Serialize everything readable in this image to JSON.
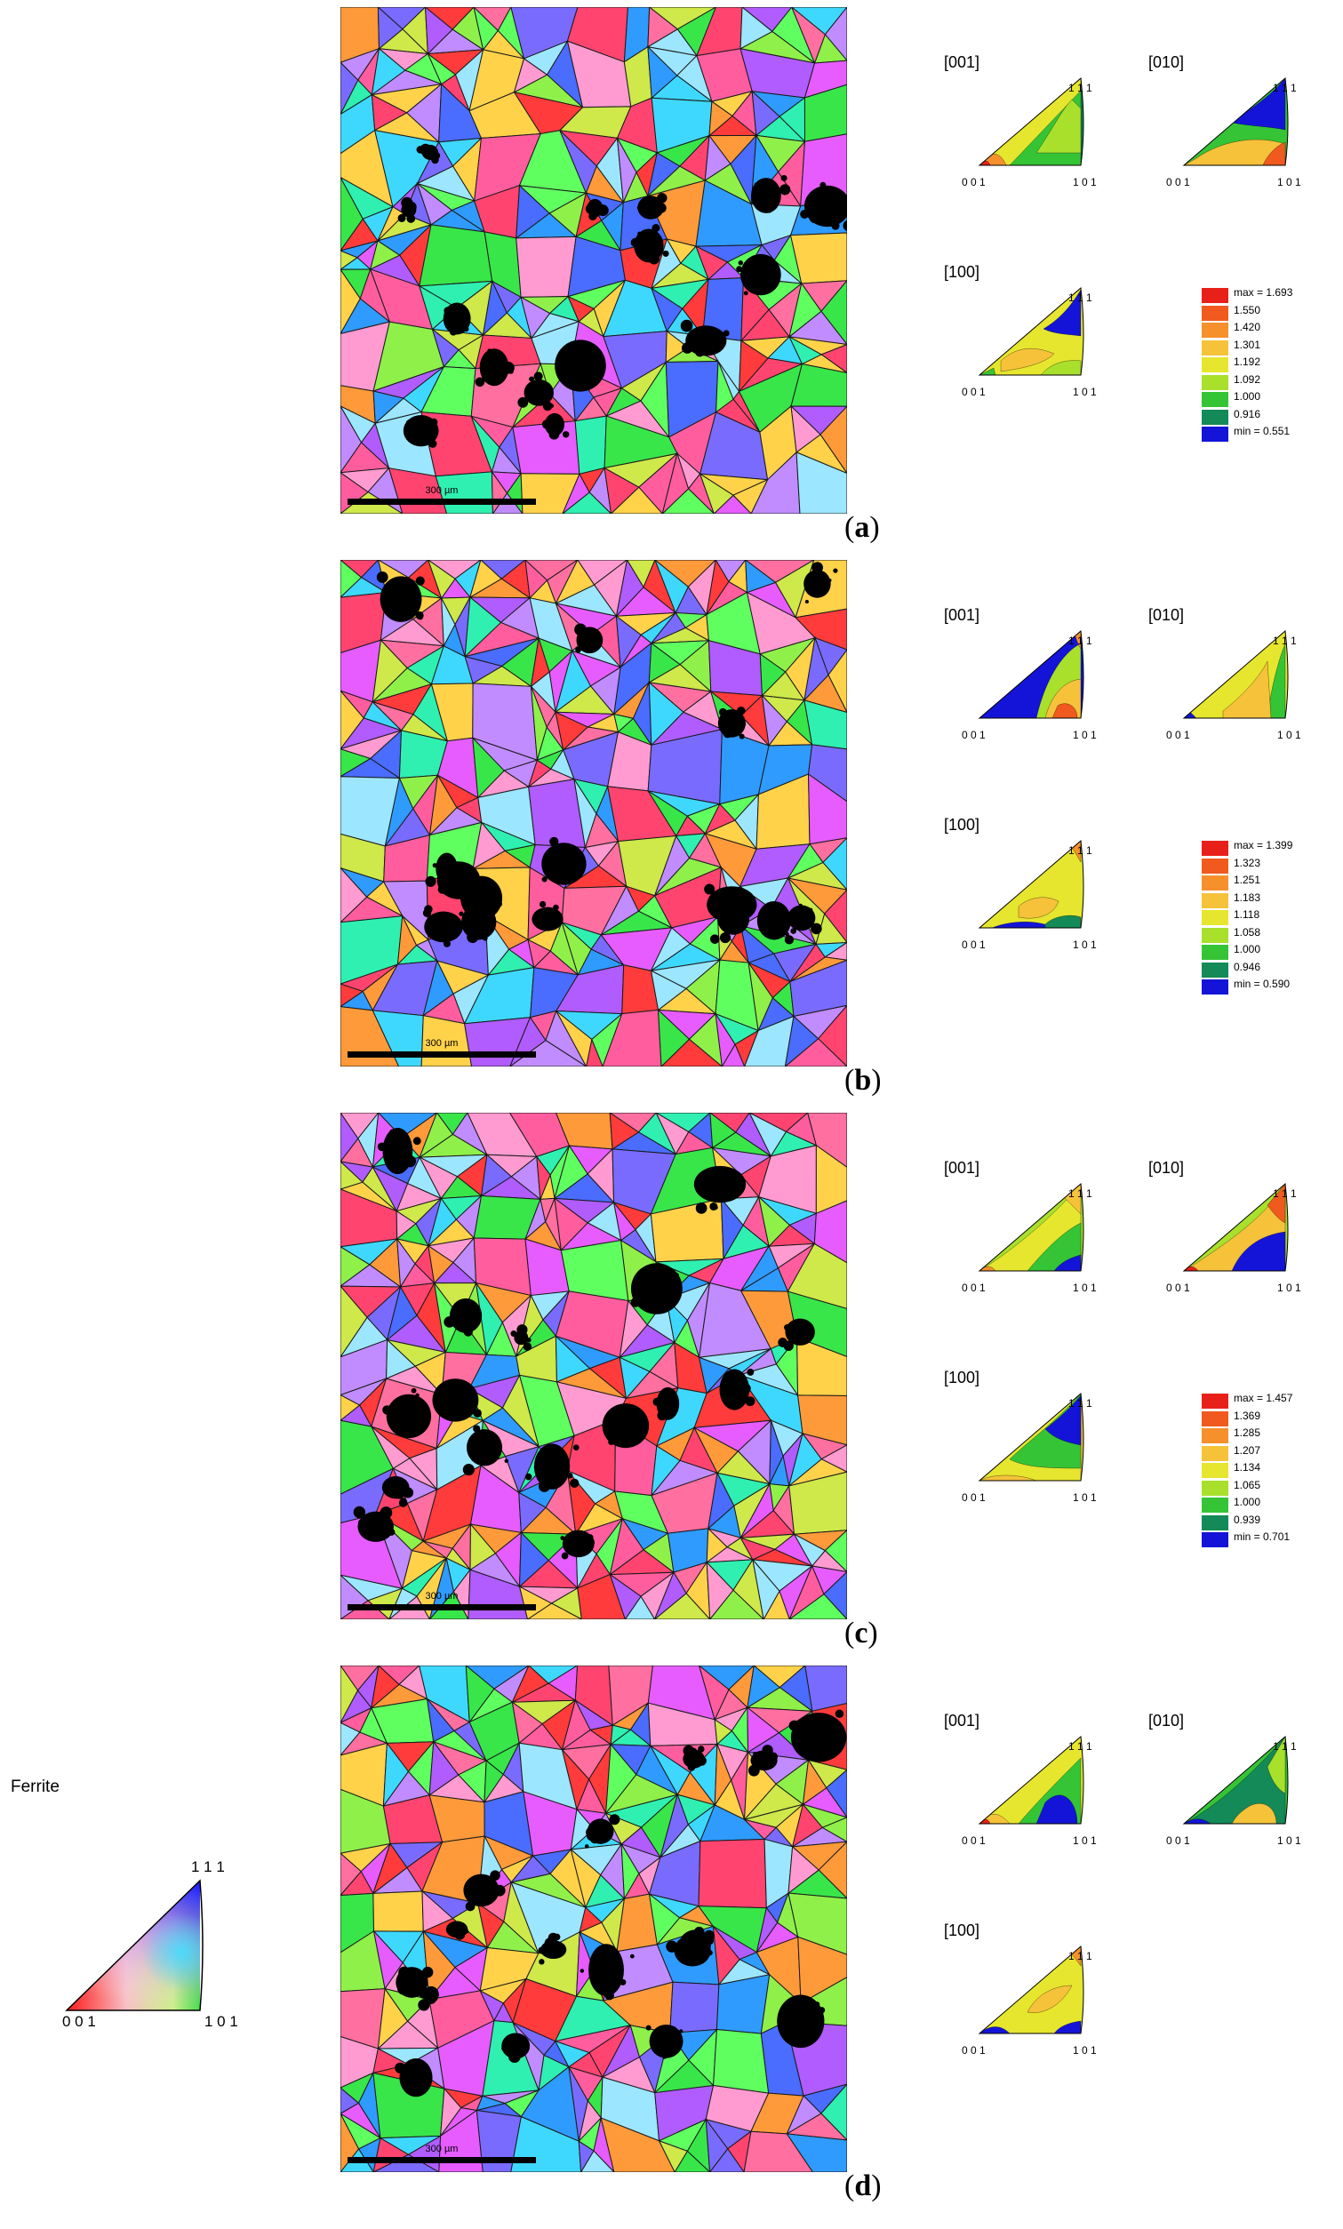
{
  "scale_bar": "300 µm",
  "color_key": {
    "title": "Ferrite",
    "top_label": "1 1 1",
    "left_label": "0 0 1",
    "right_label": "1 0 1"
  },
  "panels": [
    {
      "tag_open": "(",
      "tag_letter": "a",
      "tag_close": ")",
      "ipfs": [
        {
          "direction": "[001]",
          "corner_top": "1 1 1",
          "corner_left": "0 0 1",
          "corner_right": "1 0 1"
        },
        {
          "direction": "[010]",
          "corner_top": "1 1 1",
          "corner_left": "0 0 1",
          "corner_right": "1 0 1"
        },
        {
          "direction": "[100]",
          "corner_top": "1 1 1",
          "corner_left": "0 0 1",
          "corner_right": "1 0 1"
        }
      ],
      "legend": [
        "max = 1.693",
        "1.550",
        "1.420",
        "1.301",
        "1.192",
        "1.092",
        "1.000",
        "0.916",
        "min = 0.551"
      ]
    },
    {
      "tag_open": "(",
      "tag_letter": "b",
      "tag_close": ")",
      "ipfs": [
        {
          "direction": "[001]",
          "corner_top": "1 1 1",
          "corner_left": "0 0 1",
          "corner_right": "1 0 1"
        },
        {
          "direction": "[010]",
          "corner_top": "1 1 1",
          "corner_left": "0 0 1",
          "corner_right": "1 0 1"
        },
        {
          "direction": "[100]",
          "corner_top": "1 1 1",
          "corner_left": "0 0 1",
          "corner_right": "1 0 1"
        }
      ],
      "legend": [
        "max = 1.399",
        "1.323",
        "1.251",
        "1.183",
        "1.118",
        "1.058",
        "1.000",
        "0.946",
        "min = 0.590"
      ]
    },
    {
      "tag_open": "(",
      "tag_letter": "c",
      "tag_close": ")",
      "ipfs": [
        {
          "direction": "[001]",
          "corner_top": "1 1 1",
          "corner_left": "0 0 1",
          "corner_right": "1 0 1"
        },
        {
          "direction": "[010]",
          "corner_top": "1 1 1",
          "corner_left": "0 0 1",
          "corner_right": "1 0 1"
        },
        {
          "direction": "[100]",
          "corner_top": "1 1 1",
          "corner_left": "0 0 1",
          "corner_right": "1 0 1"
        }
      ],
      "legend": [
        "max = 1.457",
        "1.369",
        "1.285",
        "1.207",
        "1.134",
        "1.065",
        "1.000",
        "0.939",
        "min = 0.701"
      ]
    },
    {
      "tag_open": "(",
      "tag_letter": "d",
      "tag_close": ")",
      "ipfs": [
        {
          "direction": "[001]",
          "corner_top": "1 1 1",
          "corner_left": "0 0 1",
          "corner_right": "1 0 1"
        },
        {
          "direction": "[010]",
          "corner_top": "1 1 1",
          "corner_left": "0 0 1",
          "corner_right": "1 0 1"
        },
        {
          "direction": "[100]",
          "corner_top": "1 1 1",
          "corner_left": "0 0 1",
          "corner_right": "1 0 1"
        }
      ],
      "legend": []
    }
  ],
  "contour_colors": [
    "#e8201a",
    "#f05a1e",
    "#f5902c",
    "#f5c23a",
    "#e6e62e",
    "#a8e02c",
    "#35c435",
    "#138a57",
    "#1414d8"
  ]
}
